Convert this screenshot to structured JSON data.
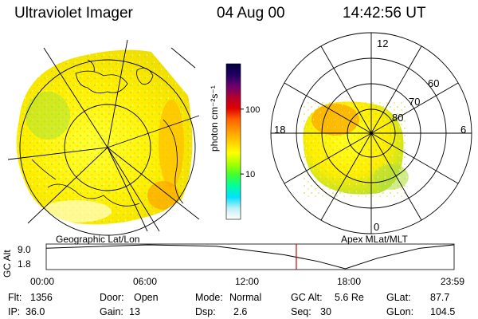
{
  "header": {
    "title": "Ultraviolet Imager",
    "date": "04 Aug 00",
    "time": "14:42:56 UT"
  },
  "geo_panel": {
    "label": "Geographic Lat/Lon"
  },
  "colorbar": {
    "unit_label": "photon cm⁻²s⁻¹",
    "ticks": [
      {
        "label": "100",
        "value": 100
      },
      {
        "label": "10",
        "value": 10
      }
    ],
    "colors": [
      "#000040",
      "#200060",
      "#6a0070",
      "#b00030",
      "#e00000",
      "#ff6000",
      "#ff9900",
      "#ffcc00",
      "#ffff00",
      "#aaff00",
      "#40ff30",
      "#00ffa0",
      "#00e0ff",
      "#bfeff3",
      "#ffffff"
    ]
  },
  "polar_panel": {
    "label": "Apex MLat/MLT",
    "mlt_labels": {
      "top": "12",
      "left": "18",
      "right": "6",
      "bottom": "0"
    },
    "lat_labels": [
      "60",
      "70",
      "80"
    ]
  },
  "timeline": {
    "y_label": "GC Alt",
    "y_ticks": [
      "9.0",
      "1.8"
    ],
    "x_ticks": [
      "00:00",
      "06:00",
      "12:00",
      "18:00",
      "23:59"
    ],
    "marker_time": "14:42:56",
    "altitude_curve": [
      {
        "t": 0.0,
        "alt": 8.0
      },
      {
        "t": 6.0,
        "alt": 9.0
      },
      {
        "t": 10.0,
        "alt": 8.6
      },
      {
        "t": 14.0,
        "alt": 6.0
      },
      {
        "t": 16.0,
        "alt": 4.0
      },
      {
        "t": 17.6,
        "alt": 1.8
      },
      {
        "t": 19.5,
        "alt": 5.0
      },
      {
        "t": 22.0,
        "alt": 8.0
      },
      {
        "t": 23.98,
        "alt": 9.0
      }
    ],
    "colors": {
      "marker": "#cc0000"
    }
  },
  "info": [
    [
      {
        "label": "Flt:",
        "value": "1356"
      },
      {
        "label": "Door:",
        "value": "Open"
      },
      {
        "label": "Mode:",
        "value": "Normal"
      },
      {
        "label": "GC Alt:",
        "value": "5.6 Re"
      },
      {
        "label": "GLat:",
        "value": "87.7"
      }
    ],
    [
      {
        "label": "IP:",
        "value": "36.0"
      },
      {
        "label": "Gain:",
        "value": "13"
      },
      {
        "label": "Dsp:",
        "value": "2.6"
      },
      {
        "label": "Seq:",
        "value": "30"
      },
      {
        "label": "GLon:",
        "value": "104.5"
      }
    ]
  ]
}
